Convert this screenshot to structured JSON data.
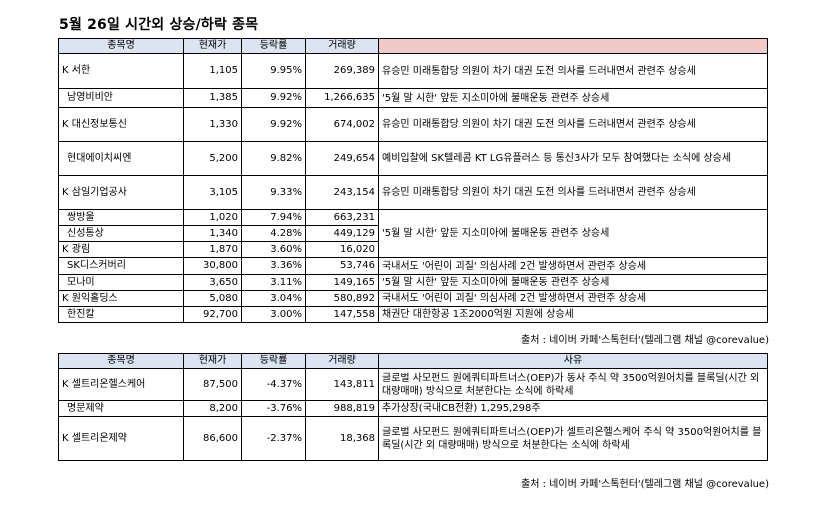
{
  "title": "5월 26일  시간외 상승/하락 종목",
  "headers_up": [
    "종목명",
    "현재가",
    "등락률",
    "거래량",
    ""
  ],
  "rows_up": [
    {
      "mark": "K",
      "name": "서한",
      "price": "1,105",
      "rate": "9.95%",
      "vol": "269,389"
    },
    {
      "mark": "",
      "name": "남영비비안",
      "price": "1,385",
      "rate": "9.92%",
      "vol": "1,266,635"
    },
    {
      "mark": "K",
      "name": "대신정보통신",
      "price": "1,330",
      "rate": "9.92%",
      "vol": "674,002"
    },
    {
      "mark": "",
      "name": "현대에이치씨엔",
      "price": "5,200",
      "rate": "9.82%",
      "vol": "249,654"
    },
    {
      "mark": "K",
      "name": "삼일기업공사",
      "price": "3,105",
      "rate": "9.33%",
      "vol": "243,154"
    },
    {
      "mark": "",
      "name": "쌍방울",
      "price": "1,020",
      "rate": "7.94%",
      "vol": "663,231"
    },
    {
      "mark": "",
      "name": "신성통상",
      "price": "1,340",
      "rate": "4.28%",
      "vol": "449,129"
    },
    {
      "mark": "K",
      "name": "광림",
      "price": "1,870",
      "rate": "3.60%",
      "vol": "16,020"
    },
    {
      "mark": "",
      "name": "SK디스커버리",
      "price": "30,800",
      "rate": "3.36%",
      "vol": "53,746"
    },
    {
      "mark": "",
      "name": "모나미",
      "price": "3,650",
      "rate": "3.11%",
      "vol": "149,165"
    },
    {
      "mark": "K",
      "name": "원익홀딩스",
      "price": "5,080",
      "rate": "3.04%",
      "vol": "580,892"
    },
    {
      "mark": "",
      "name": "한진칼",
      "price": "92,700",
      "rate": "3.00%",
      "vol": "147,558"
    }
  ],
  "reasons_up": {
    "r0": "유승민 미래통합당 의원이 차기 대권 도전 의사를 드러내면서 관련주 상승세",
    "r1": "'5월 말 시한' 앞둔 지소미아에 불매운동 관련주 상승세",
    "r2": "유승민 미래통합당 의원이 차기 대권 도전 의사를 드러내면서 관련주 상승세",
    "r3": "예비입찰에 SK텔레콤 KT LG유플러스 등 통신3사가 모두 참여했다는 소식에 상승세",
    "r4": "유승민 미래통합당 의원이 차기 대권 도전 의사를 드러내면서 관련주 상승세",
    "r5": "'5월 말 시한' 앞둔 지소미아에 불매운동 관련주 상승세",
    "r8": "국내서도 '어린이 괴질' 의심사례 2건 발생하면서 관련주 상승세",
    "r9": "'5월 말 시한' 앞둔 지소미아에 불매운동 관련주 상승세",
    "r10": "국내서도 '어린이 괴질' 의심사례 2건 발생하면서 관련주 상승세",
    "r11": "채권단 대한항공 1조2000억원 지원에 상승세"
  },
  "source1": "출처 : 네이버 카페'스톡헌터'(텔레그램 채널 @corevalue)",
  "headers_down": [
    "종목명",
    "현재가",
    "등락률",
    "거래량",
    "사유"
  ],
  "rows_down": [
    {
      "mark": "K",
      "name": "셀트리온헬스케어",
      "price": "87,500",
      "rate": "-4.37%",
      "vol": "143,811",
      "reason": "글로벌 사모펀드 원에쿼티파트너스(OEP)가 동사 주식 약 3500억원어치를 블록딜(시간 외 대량매매) 방식으로 처분한다는 소식에 하락세"
    },
    {
      "mark": "",
      "name": "명문제약",
      "price": "8,200",
      "rate": "-3.76%",
      "vol": "988,819",
      "reason": "추가상장(국내CB전환) 1,295,298주"
    },
    {
      "mark": "K",
      "name": "셀트리온제약",
      "price": "86,600",
      "rate": "-2.37%",
      "vol": "18,368",
      "reason": "글로벌 사모펀드 원에쿼티파트너스(OEP)가 셀트리온헬스케어 주식 약 3500억원어치를 블록딜(시간 외 대량매매) 방식으로 처분한다는 소식에 하락세"
    }
  ],
  "source2": "출처 : 네이버 카페'스톡헌터'(텔레그램 채널 @corevalue)"
}
